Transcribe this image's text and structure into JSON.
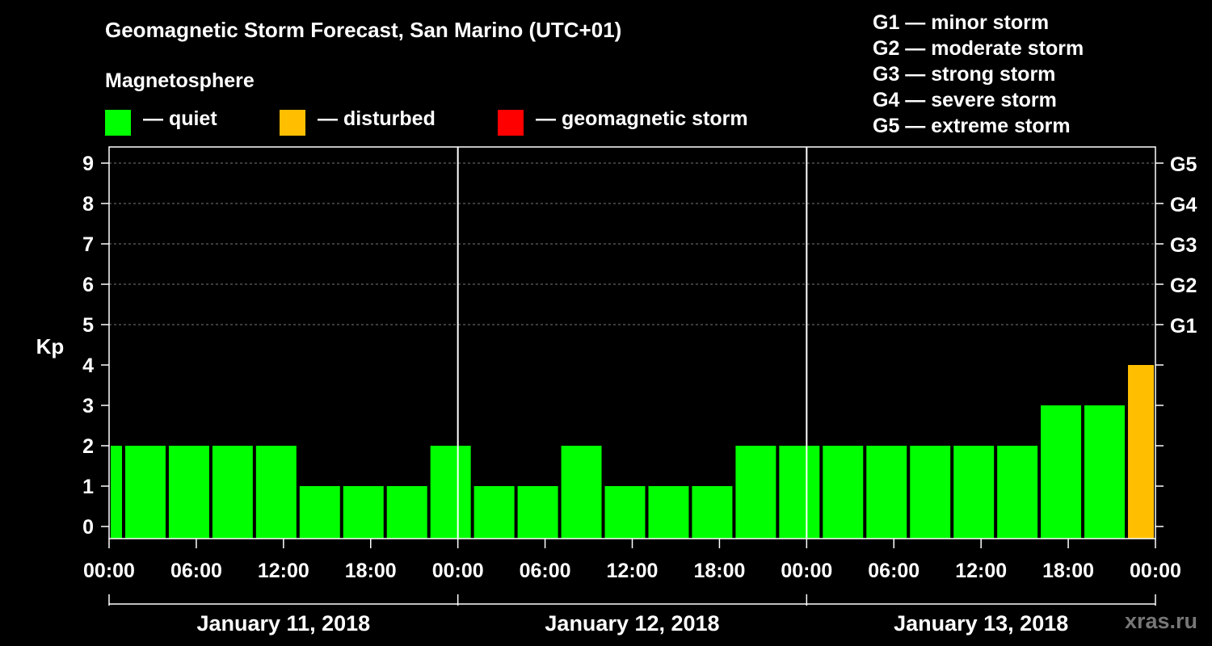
{
  "title": "Geomagnetic Storm Forecast, San Marino (UTC+01)",
  "legend": {
    "title": "Magnetosphere",
    "items": [
      {
        "label": "— quiet",
        "color": "#00ff00"
      },
      {
        "label": "— disturbed",
        "color": "#ffbf00"
      },
      {
        "label": "— geomagnetic storm",
        "color": "#ff0000"
      }
    ]
  },
  "storm_scale": [
    "G1 — minor storm",
    "G2 — moderate storm",
    "G3 — strong storm",
    "G4 — severe storm",
    "G5 — extreme storm"
  ],
  "watermark": "xras.ru",
  "chart_data": {
    "type": "bar",
    "title": "Geomagnetic Storm Forecast, San Marino (UTC+01)",
    "ylabel": "Kp",
    "ylim": [
      0,
      9
    ],
    "yticks": [
      "0",
      "1",
      "2",
      "3",
      "4",
      "5",
      "6",
      "7",
      "8",
      "9"
    ],
    "right_ticks": [
      {
        "kp": 5,
        "label": "G1"
      },
      {
        "kp": 6,
        "label": "G2"
      },
      {
        "kp": 7,
        "label": "G3"
      },
      {
        "kp": 8,
        "label": "G4"
      },
      {
        "kp": 9,
        "label": "G5"
      }
    ],
    "xlim_hours": [
      0,
      72
    ],
    "xticks": [
      {
        "h": 0,
        "label": "00:00"
      },
      {
        "h": 6,
        "label": "06:00"
      },
      {
        "h": 12,
        "label": "12:00"
      },
      {
        "h": 18,
        "label": "18:00"
      },
      {
        "h": 24,
        "label": "00:00"
      },
      {
        "h": 30,
        "label": "06:00"
      },
      {
        "h": 36,
        "label": "12:00"
      },
      {
        "h": 42,
        "label": "18:00"
      },
      {
        "h": 48,
        "label": "00:00"
      },
      {
        "h": 54,
        "label": "06:00"
      },
      {
        "h": 60,
        "label": "12:00"
      },
      {
        "h": 66,
        "label": "18:00"
      },
      {
        "h": 72,
        "label": "00:00"
      }
    ],
    "days": [
      {
        "label": "January 11, 2018",
        "start_h": 0,
        "end_h": 24
      },
      {
        "label": "January 12, 2018",
        "start_h": 24,
        "end_h": 48
      },
      {
        "label": "January 13, 2018",
        "start_h": 48,
        "end_h": 72
      }
    ],
    "bars": [
      {
        "start_h": -1,
        "end_h": 1,
        "kp": 2,
        "status": "quiet"
      },
      {
        "start_h": 1,
        "end_h": 4,
        "kp": 2,
        "status": "quiet"
      },
      {
        "start_h": 4,
        "end_h": 7,
        "kp": 2,
        "status": "quiet"
      },
      {
        "start_h": 7,
        "end_h": 10,
        "kp": 2,
        "status": "quiet"
      },
      {
        "start_h": 10,
        "end_h": 13,
        "kp": 2,
        "status": "quiet"
      },
      {
        "start_h": 13,
        "end_h": 16,
        "kp": 1,
        "status": "quiet"
      },
      {
        "start_h": 16,
        "end_h": 19,
        "kp": 1,
        "status": "quiet"
      },
      {
        "start_h": 19,
        "end_h": 22,
        "kp": 1,
        "status": "quiet"
      },
      {
        "start_h": 22,
        "end_h": 25,
        "kp": 2,
        "status": "quiet"
      },
      {
        "start_h": 25,
        "end_h": 28,
        "kp": 1,
        "status": "quiet"
      },
      {
        "start_h": 28,
        "end_h": 31,
        "kp": 1,
        "status": "quiet"
      },
      {
        "start_h": 31,
        "end_h": 34,
        "kp": 2,
        "status": "quiet"
      },
      {
        "start_h": 34,
        "end_h": 37,
        "kp": 1,
        "status": "quiet"
      },
      {
        "start_h": 37,
        "end_h": 40,
        "kp": 1,
        "status": "quiet"
      },
      {
        "start_h": 40,
        "end_h": 43,
        "kp": 1,
        "status": "quiet"
      },
      {
        "start_h": 43,
        "end_h": 46,
        "kp": 2,
        "status": "quiet"
      },
      {
        "start_h": 46,
        "end_h": 49,
        "kp": 2,
        "status": "quiet"
      },
      {
        "start_h": 49,
        "end_h": 52,
        "kp": 2,
        "status": "quiet"
      },
      {
        "start_h": 52,
        "end_h": 55,
        "kp": 2,
        "status": "quiet"
      },
      {
        "start_h": 55,
        "end_h": 58,
        "kp": 2,
        "status": "quiet"
      },
      {
        "start_h": 58,
        "end_h": 61,
        "kp": 2,
        "status": "quiet"
      },
      {
        "start_h": 61,
        "end_h": 64,
        "kp": 2,
        "status": "quiet"
      },
      {
        "start_h": 64,
        "end_h": 67,
        "kp": 3,
        "status": "quiet"
      },
      {
        "start_h": 67,
        "end_h": 70,
        "kp": 3,
        "status": "quiet"
      },
      {
        "start_h": 70,
        "end_h": 72,
        "kp": 4,
        "status": "disturbed"
      }
    ]
  }
}
